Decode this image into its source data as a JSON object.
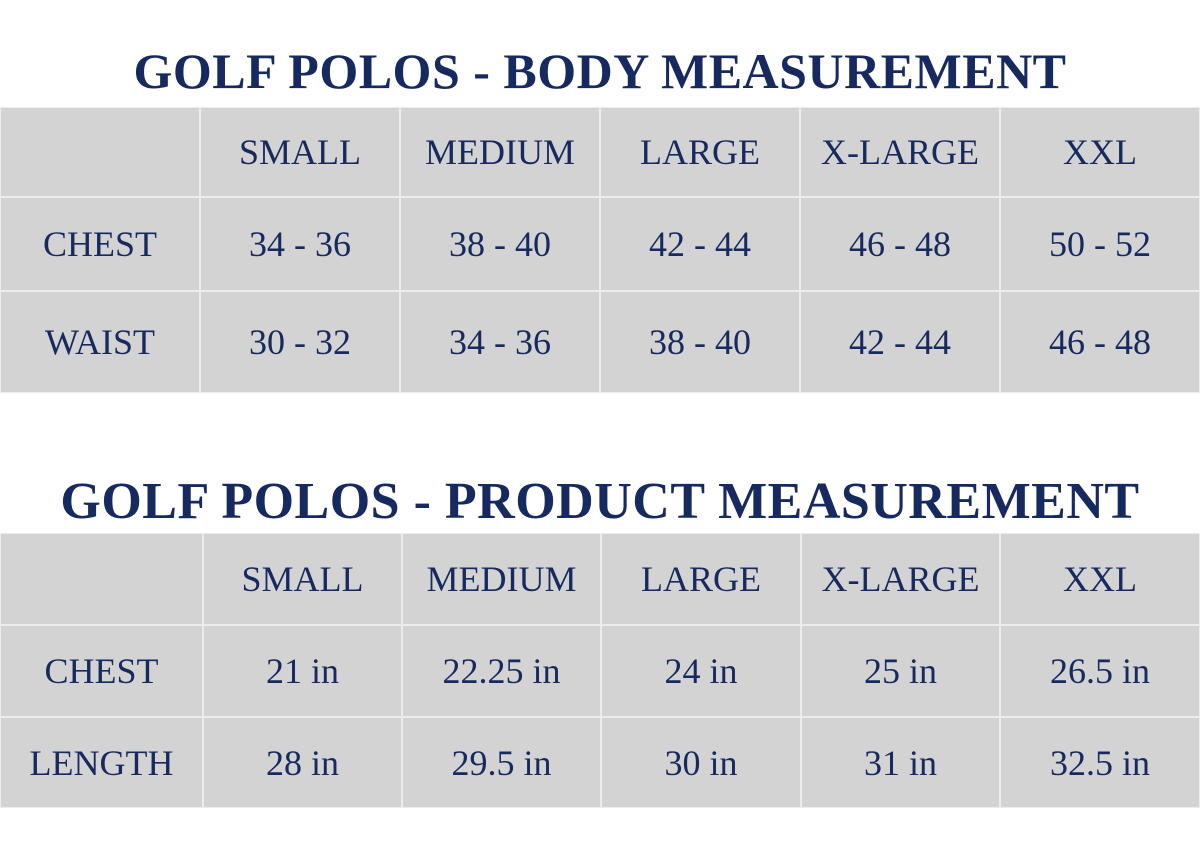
{
  "tables": [
    {
      "title": "GOLF POLOS - BODY MEASUREMENT",
      "header": [
        "SMALL",
        "MEDIUM",
        "LARGE",
        "X-LARGE",
        "XXL"
      ],
      "rows": [
        {
          "label": "CHEST",
          "cells": [
            "34 - 36",
            "38 - 40",
            "42 - 44",
            "46 - 48",
            "50 - 52"
          ]
        },
        {
          "label": "WAIST",
          "cells": [
            "30 - 32",
            "34 - 36",
            "38 - 40",
            "42 - 44",
            "46 - 48"
          ]
        }
      ]
    },
    {
      "title": "GOLF POLOS - PRODUCT MEASUREMENT",
      "header": [
        "SMALL",
        "MEDIUM",
        "LARGE",
        "X-LARGE",
        "XXL"
      ],
      "rows": [
        {
          "label": "CHEST",
          "cells": [
            "21 in",
            "22.25 in",
            "24 in",
            "25 in",
            "26.5 in"
          ]
        },
        {
          "label": "LENGTH",
          "cells": [
            "28 in",
            "29.5 in",
            "30 in",
            "31 in",
            "32.5 in"
          ]
        }
      ]
    }
  ]
}
